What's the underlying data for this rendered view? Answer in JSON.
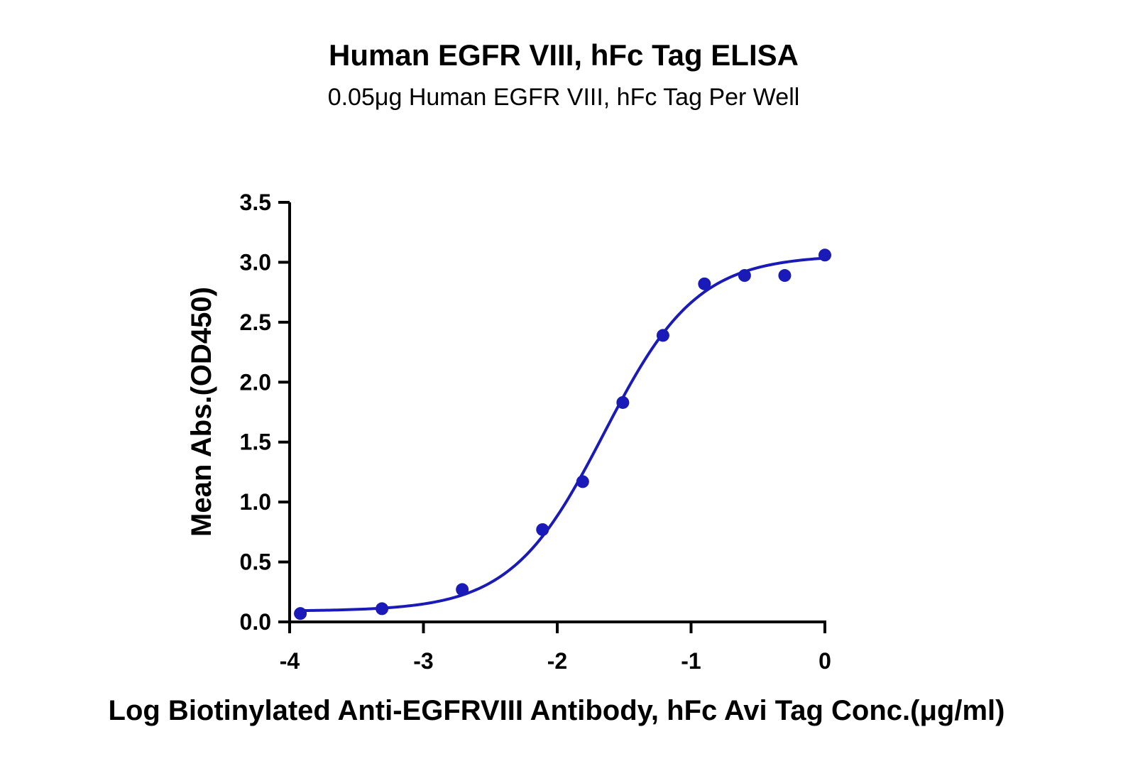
{
  "chart_data": {
    "type": "scatter",
    "title": "Human EGFR VIII, hFc Tag ELISA",
    "subtitle": "0.05μg Human EGFR VIII, hFc Tag Per Well",
    "xlabel": "Log Biotinylated Anti-EGFRVIII Antibody, hFc Avi Tag Conc.(μg/ml)",
    "ylabel": "Mean Abs.(OD450)",
    "xlim": [
      -4,
      0
    ],
    "ylim": [
      0,
      3.5
    ],
    "x_ticks": [
      "-4",
      "-3",
      "-2",
      "-1",
      "0"
    ],
    "y_ticks": [
      "0.0",
      "0.5",
      "1.0",
      "1.5",
      "2.0",
      "2.5",
      "3.0",
      "3.5"
    ],
    "grid": false,
    "color": "#1a1ab8",
    "series": [
      {
        "x": [
          -3.92,
          -3.31,
          -2.71,
          -2.11,
          -1.81,
          -1.51,
          -1.21,
          -0.9,
          -0.6,
          -0.3,
          0.0
        ],
        "y": [
          0.07,
          0.11,
          0.27,
          0.77,
          1.17,
          1.83,
          2.39,
          2.82,
          2.89,
          2.89,
          3.06
        ]
      }
    ],
    "fit_curve": {
      "model": "4PL",
      "bottom": 0.09,
      "top": 3.06,
      "log_ec50": -1.65,
      "hill_slope": 1.25
    }
  }
}
